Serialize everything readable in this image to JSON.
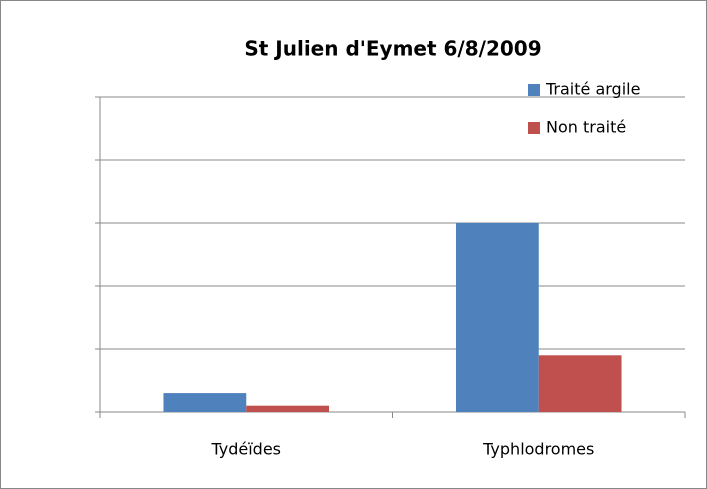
{
  "chart_data": {
    "type": "bar",
    "title": "St Julien d'Eymet 6/8/2009",
    "categories": [
      "Tydéïdes",
      "Typhlodromes"
    ],
    "series": [
      {
        "name": "Traité argile",
        "color": "#4f81bd",
        "values": [
          0.3,
          3
        ]
      },
      {
        "name": "Non traité",
        "color": "#c0504d",
        "values": [
          0.1,
          0.9
        ]
      }
    ],
    "ylim": [
      0,
      5
    ],
    "yticks": [
      0,
      1,
      2,
      3,
      4,
      5
    ],
    "tick_labels": false,
    "grid": true,
    "legend": "top-right"
  }
}
